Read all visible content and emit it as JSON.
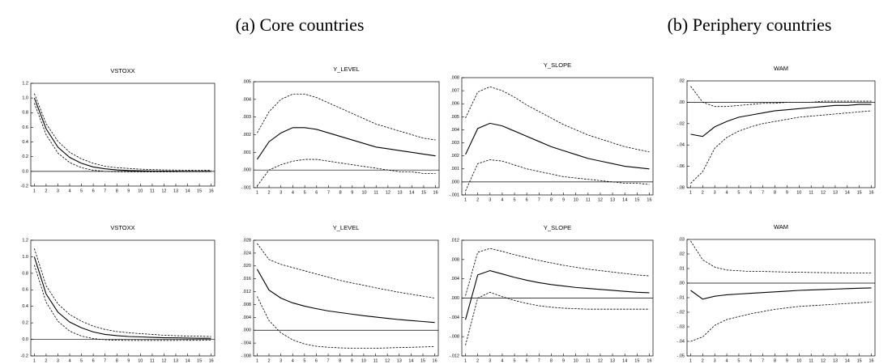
{
  "headings": [
    "(a)  Core countries",
    "(b) Periphery countries"
  ],
  "chart_data": [
    {
      "type": "line",
      "title": "VSTOXX",
      "x": [
        1,
        2,
        3,
        4,
        5,
        6,
        7,
        8,
        9,
        10,
        11,
        12,
        13,
        14,
        15,
        16
      ],
      "xlim": [
        0.7,
        16.3
      ],
      "xticks": [
        1,
        2,
        3,
        4,
        5,
        6,
        7,
        8,
        9,
        10,
        11,
        12,
        13,
        14,
        15,
        16
      ],
      "ylim": [
        -0.2,
        1.2
      ],
      "yticks": [
        -0.2,
        {
          "value": 0,
          "label": "0.0"
        },
        0.2,
        0.4,
        0.6,
        0.8,
        {
          "value": 1,
          "label": "1.0"
        },
        1.2
      ],
      "hline": 0,
      "series": [
        {
          "color": "#000",
          "dash": false,
          "values": [
            1.0,
            0.58,
            0.33,
            0.19,
            0.11,
            0.06,
            0.035,
            0.02,
            0.012,
            0.008,
            0.005,
            0.003,
            0.002,
            0.001,
            0.001,
            0.0
          ]
        },
        {
          "color": "#000",
          "dash": true,
          "values": [
            1.06,
            0.65,
            0.41,
            0.26,
            0.17,
            0.11,
            0.07,
            0.05,
            0.04,
            0.03,
            0.025,
            0.02,
            0.018,
            0.016,
            0.015,
            0.014
          ]
        },
        {
          "color": "#000",
          "dash": true,
          "values": [
            0.93,
            0.5,
            0.25,
            0.12,
            0.05,
            0.015,
            0.0,
            -0.005,
            -0.006,
            -0.006,
            -0.006,
            -0.005,
            -0.005,
            -0.004,
            -0.004,
            -0.004
          ]
        }
      ]
    },
    {
      "type": "line",
      "title": "Y_LEVEL",
      "x": [
        1,
        2,
        3,
        4,
        5,
        6,
        7,
        8,
        9,
        10,
        11,
        12,
        13,
        14,
        15,
        16
      ],
      "xlim": [
        0.7,
        16.3
      ],
      "xticks": [
        1,
        2,
        3,
        4,
        5,
        6,
        7,
        8,
        9,
        10,
        11,
        12,
        13,
        14,
        15,
        16
      ],
      "ylim": [
        -0.001,
        0.005
      ],
      "yticks": [
        {
          "value": -0.001,
          "label": "-.001"
        },
        {
          "value": 0,
          "label": ".000"
        },
        {
          "value": 0.001,
          "label": ".001"
        },
        {
          "value": 0.002,
          "label": ".002"
        },
        {
          "value": 0.003,
          "label": ".003"
        },
        {
          "value": 0.004,
          "label": ".004"
        },
        {
          "value": 0.005,
          "label": ".005"
        }
      ],
      "hline": 0,
      "series": [
        {
          "color": "#000",
          "dash": false,
          "values": [
            0.0006,
            0.0016,
            0.0021,
            0.0024,
            0.0024,
            0.0023,
            0.0021,
            0.0019,
            0.0017,
            0.0015,
            0.0013,
            0.0012,
            0.0011,
            0.001,
            0.0009,
            0.0008
          ]
        },
        {
          "color": "#000",
          "dash": true,
          "values": [
            0.0021,
            0.0033,
            0.004,
            0.0043,
            0.0043,
            0.0041,
            0.0038,
            0.0035,
            0.0032,
            0.0029,
            0.0026,
            0.0024,
            0.0022,
            0.002,
            0.0018,
            0.0017
          ]
        },
        {
          "color": "#000",
          "dash": true,
          "values": [
            -0.0009,
            0.0,
            0.0003,
            0.0005,
            0.0006,
            0.0006,
            0.0005,
            0.0004,
            0.0003,
            0.0002,
            0.0001,
            0.0,
            -0.0001,
            -0.0001,
            -0.0002,
            -0.0002
          ]
        }
      ]
    },
    {
      "type": "line",
      "title": "Y_SLOPE",
      "x": [
        1,
        2,
        3,
        4,
        5,
        6,
        7,
        8,
        9,
        10,
        11,
        12,
        13,
        14,
        15,
        16
      ],
      "xlim": [
        0.7,
        16.3
      ],
      "xticks": [
        1,
        2,
        3,
        4,
        5,
        6,
        7,
        8,
        9,
        10,
        11,
        12,
        13,
        14,
        15,
        16
      ],
      "ylim": [
        -0.001,
        0.008
      ],
      "yticks": [
        {
          "value": -0.001,
          "label": "-.001"
        },
        {
          "value": 0,
          "label": ".000"
        },
        {
          "value": 0.001,
          "label": ".001"
        },
        {
          "value": 0.002,
          "label": ".002"
        },
        {
          "value": 0.003,
          "label": ".003"
        },
        {
          "value": 0.004,
          "label": ".004"
        },
        {
          "value": 0.005,
          "label": ".005"
        },
        {
          "value": 0.006,
          "label": ".006"
        },
        {
          "value": 0.007,
          "label": ".007"
        },
        {
          "value": 0.008,
          "label": ".008"
        }
      ],
      "hline": 0,
      "series": [
        {
          "color": "#000",
          "dash": false,
          "values": [
            0.0021,
            0.0041,
            0.0045,
            0.0043,
            0.0039,
            0.0035,
            0.0031,
            0.0027,
            0.0024,
            0.0021,
            0.0018,
            0.0016,
            0.0014,
            0.0012,
            0.0011,
            0.001
          ]
        },
        {
          "color": "#000",
          "dash": true,
          "values": [
            0.0049,
            0.0069,
            0.0073,
            0.007,
            0.0065,
            0.0059,
            0.0054,
            0.0049,
            0.0044,
            0.004,
            0.0036,
            0.0033,
            0.003,
            0.0027,
            0.0025,
            0.0023
          ]
        },
        {
          "color": "#000",
          "dash": true,
          "values": [
            -0.0007,
            0.0014,
            0.0017,
            0.0016,
            0.0013,
            0.001,
            0.0008,
            0.0006,
            0.0004,
            0.0003,
            0.0002,
            0.0001,
            0.0,
            -0.0001,
            -0.0001,
            -0.0002
          ]
        }
      ]
    },
    {
      "type": "line",
      "title": "WAM",
      "x": [
        1,
        2,
        3,
        4,
        5,
        6,
        7,
        8,
        9,
        10,
        11,
        12,
        13,
        14,
        15,
        16
      ],
      "xlim": [
        0.7,
        16.3
      ],
      "xticks": [
        1,
        2,
        3,
        4,
        5,
        6,
        7,
        8,
        9,
        10,
        11,
        12,
        13,
        14,
        15,
        16
      ],
      "ylim": [
        -0.08,
        0.02
      ],
      "yticks": [
        {
          "value": -0.08,
          "label": "-.08"
        },
        {
          "value": -0.06,
          "label": "-.06"
        },
        {
          "value": -0.04,
          "label": "-.04"
        },
        {
          "value": -0.02,
          "label": "-.02"
        },
        {
          "value": 0,
          "label": ".00"
        },
        {
          "value": 0.02,
          "label": ".02"
        }
      ],
      "hline": 0,
      "series": [
        {
          "color": "#000",
          "dash": false,
          "values": [
            -0.03,
            -0.032,
            -0.023,
            -0.018,
            -0.014,
            -0.012,
            -0.01,
            -0.008,
            -0.007,
            -0.006,
            -0.005,
            -0.004,
            -0.003,
            -0.003,
            -0.002,
            -0.002
          ]
        },
        {
          "color": "#000",
          "dash": true,
          "values": [
            0.015,
            0.0,
            -0.004,
            -0.004,
            -0.003,
            -0.002,
            -0.001,
            -0.001,
            0.0,
            0.0,
            0.0,
            0.001,
            0.001,
            0.001,
            0.001,
            0.001
          ]
        },
        {
          "color": "#000",
          "dash": true,
          "values": [
            -0.076,
            -0.065,
            -0.043,
            -0.033,
            -0.027,
            -0.023,
            -0.02,
            -0.018,
            -0.016,
            -0.014,
            -0.013,
            -0.012,
            -0.011,
            -0.01,
            -0.009,
            -0.008
          ]
        }
      ]
    },
    {
      "type": "line",
      "title": "VSTOXX",
      "x": [
        1,
        2,
        3,
        4,
        5,
        6,
        7,
        8,
        9,
        10,
        11,
        12,
        13,
        14,
        15,
        16
      ],
      "xlim": [
        0.7,
        16.3
      ],
      "xticks": [
        1,
        2,
        3,
        4,
        5,
        6,
        7,
        8,
        9,
        10,
        11,
        12,
        13,
        14,
        15,
        16
      ],
      "ylim": [
        -0.2,
        1.2
      ],
      "yticks": [
        -0.2,
        {
          "value": 0,
          "label": "0.0"
        },
        0.2,
        0.4,
        0.6,
        0.8,
        {
          "value": 1,
          "label": "1.0"
        },
        1.2
      ],
      "hline": 0,
      "series": [
        {
          "color": "#000",
          "dash": false,
          "values": [
            1.0,
            0.55,
            0.33,
            0.21,
            0.14,
            0.09,
            0.06,
            0.045,
            0.035,
            0.03,
            0.025,
            0.02,
            0.018,
            0.016,
            0.014,
            0.013
          ]
        },
        {
          "color": "#000",
          "dash": true,
          "values": [
            1.1,
            0.65,
            0.43,
            0.3,
            0.22,
            0.16,
            0.12,
            0.095,
            0.08,
            0.07,
            0.06,
            0.05,
            0.045,
            0.04,
            0.038,
            0.035
          ]
        },
        {
          "color": "#000",
          "dash": true,
          "values": [
            0.9,
            0.45,
            0.22,
            0.1,
            0.04,
            0.01,
            -0.005,
            -0.01,
            -0.012,
            -0.012,
            -0.012,
            -0.012,
            -0.012,
            -0.011,
            -0.011,
            -0.01
          ]
        }
      ]
    },
    {
      "type": "line",
      "title": "Y_LEVEL",
      "x": [
        1,
        2,
        3,
        4,
        5,
        6,
        7,
        8,
        9,
        10,
        11,
        12,
        13,
        14,
        15,
        16
      ],
      "xlim": [
        0.7,
        16.3
      ],
      "xticks": [
        1,
        2,
        3,
        4,
        5,
        6,
        7,
        8,
        9,
        10,
        11,
        12,
        13,
        14,
        15,
        16
      ],
      "ylim": [
        -0.008,
        0.028
      ],
      "yticks": [
        {
          "value": -0.008,
          "label": "-.008"
        },
        {
          "value": -0.004,
          "label": "-.004"
        },
        {
          "value": 0,
          "label": ".000"
        },
        {
          "value": 0.004,
          "label": ".004"
        },
        {
          "value": 0.008,
          "label": ".008"
        },
        {
          "value": 0.012,
          "label": ".012"
        },
        {
          "value": 0.016,
          "label": ".016"
        },
        {
          "value": 0.02,
          "label": ".020"
        },
        {
          "value": 0.024,
          "label": ".024"
        },
        {
          "value": 0.028,
          "label": ".028"
        }
      ],
      "hline": 0,
      "series": [
        {
          "color": "#000",
          "dash": false,
          "values": [
            0.019,
            0.0125,
            0.01,
            0.0085,
            0.0075,
            0.0067,
            0.006,
            0.0055,
            0.005,
            0.0045,
            0.0041,
            0.0037,
            0.0033,
            0.003,
            0.0027,
            0.0024
          ]
        },
        {
          "color": "#000",
          "dash": true,
          "values": [
            0.027,
            0.022,
            0.0205,
            0.0195,
            0.0185,
            0.0175,
            0.0165,
            0.0155,
            0.0147,
            0.014,
            0.0132,
            0.0125,
            0.0118,
            0.0112,
            0.0106,
            0.01
          ]
        },
        {
          "color": "#000",
          "dash": true,
          "values": [
            0.0105,
            0.003,
            -0.0008,
            -0.003,
            -0.0043,
            -0.005,
            -0.0053,
            -0.0055,
            -0.0056,
            -0.0056,
            -0.0056,
            -0.0055,
            -0.0054,
            -0.0053,
            -0.0052,
            -0.0051
          ]
        }
      ]
    },
    {
      "type": "line",
      "title": "Y_SLOPE",
      "x": [
        1,
        2,
        3,
        4,
        5,
        6,
        7,
        8,
        9,
        10,
        11,
        12,
        13,
        14,
        15,
        16
      ],
      "xlim": [
        0.7,
        16.3
      ],
      "xticks": [
        1,
        2,
        3,
        4,
        5,
        6,
        7,
        8,
        9,
        10,
        11,
        12,
        13,
        14,
        15,
        16
      ],
      "ylim": [
        -0.012,
        0.012
      ],
      "yticks": [
        {
          "value": -0.012,
          "label": "-.012"
        },
        {
          "value": -0.008,
          "label": "-.008"
        },
        {
          "value": -0.004,
          "label": "-.004"
        },
        {
          "value": 0,
          "label": ".000"
        },
        {
          "value": 0.004,
          "label": ".004"
        },
        {
          "value": 0.008,
          "label": ".008"
        },
        {
          "value": 0.012,
          "label": ".012"
        }
      ],
      "hline": 0,
      "series": [
        {
          "color": "#000",
          "dash": false,
          "values": [
            -0.0045,
            0.0048,
            0.0057,
            0.005,
            0.0043,
            0.0037,
            0.0032,
            0.0028,
            0.0025,
            0.0022,
            0.002,
            0.0018,
            0.0016,
            0.0014,
            0.0012,
            0.0011
          ]
        },
        {
          "color": "#000",
          "dash": true,
          "values": [
            0.0005,
            0.0095,
            0.0103,
            0.0097,
            0.009,
            0.0084,
            0.0078,
            0.0073,
            0.0068,
            0.0064,
            0.006,
            0.0057,
            0.0054,
            0.0051,
            0.0048,
            0.0046
          ]
        },
        {
          "color": "#000",
          "dash": true,
          "values": [
            -0.0098,
            0.0,
            0.0012,
            0.0003,
            -0.0005,
            -0.0011,
            -0.0016,
            -0.0019,
            -0.0021,
            -0.0022,
            -0.0023,
            -0.0023,
            -0.0023,
            -0.0023,
            -0.0023,
            -0.0023
          ]
        }
      ]
    },
    {
      "type": "line",
      "title": "WAM",
      "x": [
        1,
        2,
        3,
        4,
        5,
        6,
        7,
        8,
        9,
        10,
        11,
        12,
        13,
        14,
        15,
        16
      ],
      "xlim": [
        0.7,
        16.3
      ],
      "xticks": [
        1,
        2,
        3,
        4,
        5,
        6,
        7,
        8,
        9,
        10,
        11,
        12,
        13,
        14,
        15,
        16
      ],
      "ylim": [
        -0.05,
        0.03
      ],
      "yticks": [
        {
          "value": -0.05,
          "label": "-.05"
        },
        {
          "value": -0.04,
          "label": "-.04"
        },
        {
          "value": -0.03,
          "label": "-.03"
        },
        {
          "value": -0.02,
          "label": "-.02"
        },
        {
          "value": -0.01,
          "label": "-.01"
        },
        {
          "value": 0,
          "label": ".00"
        },
        {
          "value": 0.01,
          "label": ".01"
        },
        {
          "value": 0.02,
          "label": ".02"
        },
        {
          "value": 0.03,
          "label": ".03"
        }
      ],
      "hline": 0,
      "series": [
        {
          "color": "#000",
          "dash": false,
          "values": [
            -0.005,
            -0.011,
            -0.009,
            -0.008,
            -0.0075,
            -0.007,
            -0.0065,
            -0.006,
            -0.0055,
            -0.005,
            -0.0047,
            -0.0044,
            -0.0041,
            -0.0038,
            -0.0035,
            -0.0033
          ]
        },
        {
          "color": "#000",
          "dash": true,
          "values": [
            0.029,
            0.016,
            0.011,
            0.009,
            0.0085,
            0.008,
            0.008,
            0.0078,
            0.0076,
            0.0075,
            0.0073,
            0.0072,
            0.0071,
            0.007,
            0.007,
            0.007
          ]
        },
        {
          "color": "#000",
          "dash": true,
          "values": [
            -0.04,
            -0.037,
            -0.029,
            -0.025,
            -0.023,
            -0.021,
            -0.0195,
            -0.018,
            -0.017,
            -0.016,
            -0.0155,
            -0.015,
            -0.0145,
            -0.014,
            -0.0135,
            -0.013
          ]
        }
      ]
    }
  ]
}
